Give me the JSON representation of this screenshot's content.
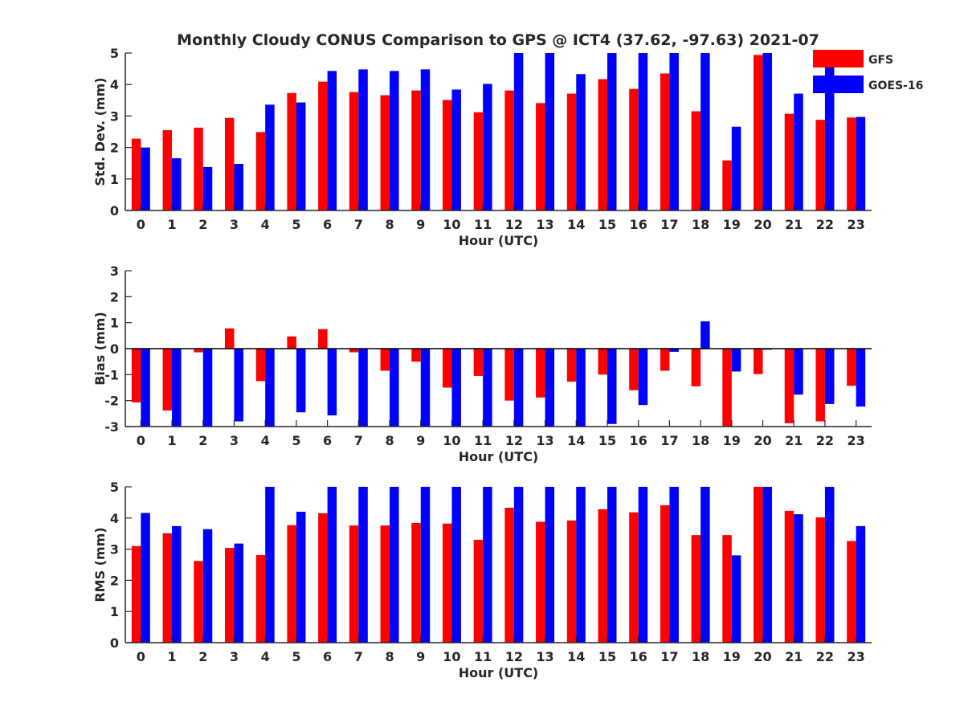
{
  "title": "Monthly Cloudy CONUS Comparison to GPS @ ICT4 (37.62, -97.63) 2021-07",
  "legend": {
    "placement": "top-right",
    "items": [
      {
        "label": "GFS",
        "color": "#ff0000"
      },
      {
        "label": "GOES-16",
        "color": "#0000ff"
      }
    ]
  },
  "chart_data": [
    {
      "type": "bar",
      "ylabel": "Std. Dev. (mm)",
      "xlabel": "Hour (UTC)",
      "ylim": [
        0,
        5
      ],
      "yticks": [
        0,
        1,
        2,
        3,
        4,
        5
      ],
      "categories": [
        "0",
        "1",
        "2",
        "3",
        "4",
        "5",
        "6",
        "7",
        "8",
        "9",
        "10",
        "11",
        "12",
        "13",
        "14",
        "15",
        "16",
        "17",
        "18",
        "19",
        "20",
        "21",
        "22",
        "23"
      ],
      "series": [
        {
          "name": "GFS",
          "color": "#ff0000",
          "values": [
            2.28,
            2.55,
            2.63,
            2.94,
            2.49,
            3.73,
            4.09,
            3.76,
            3.66,
            3.81,
            3.51,
            3.12,
            3.81,
            3.41,
            3.71,
            4.17,
            3.86,
            4.35,
            3.15,
            1.59,
            4.94,
            3.07,
            2.88,
            2.95
          ]
        },
        {
          "name": "GOES-16",
          "color": "#0000ff",
          "values": [
            2.0,
            1.66,
            1.38,
            1.48,
            3.36,
            3.43,
            4.43,
            4.48,
            4.43,
            4.48,
            3.84,
            4.02,
            5.0,
            5.0,
            4.33,
            5.0,
            5.0,
            5.0,
            5.0,
            2.66,
            5.0,
            3.71,
            4.66,
            2.97
          ]
        }
      ]
    },
    {
      "type": "bar",
      "ylabel": "Bias (mm)",
      "xlabel": "Hour (UTC)",
      "ylim": [
        -3,
        3
      ],
      "yticks": [
        -3,
        -2,
        -1,
        0,
        1,
        2,
        3
      ],
      "categories": [
        "0",
        "1",
        "2",
        "3",
        "4",
        "5",
        "6",
        "7",
        "8",
        "9",
        "10",
        "11",
        "12",
        "13",
        "14",
        "15",
        "16",
        "17",
        "18",
        "19",
        "20",
        "21",
        "22",
        "23"
      ],
      "series": [
        {
          "name": "GFS",
          "color": "#ff0000",
          "values": [
            -2.07,
            -2.38,
            -0.14,
            0.78,
            -1.25,
            0.47,
            0.75,
            -0.14,
            -0.85,
            -0.5,
            -1.5,
            -1.05,
            -2.0,
            -1.88,
            -1.27,
            -1.0,
            -1.6,
            -0.85,
            -1.45,
            -3.0,
            -0.98,
            -2.87,
            -2.8,
            -1.43
          ]
        },
        {
          "name": "GOES-16",
          "color": "#0000ff",
          "values": [
            -3.0,
            -3.0,
            -3.0,
            -2.8,
            -3.0,
            -2.45,
            -2.57,
            -3.0,
            -3.0,
            -3.0,
            -3.0,
            -3.0,
            -3.0,
            -3.0,
            -3.0,
            -2.9,
            -2.17,
            -0.12,
            1.05,
            -0.88,
            -0.04,
            -1.77,
            -2.13,
            -2.23
          ]
        }
      ]
    },
    {
      "type": "bar",
      "ylabel": "RMS (mm)",
      "xlabel": "Hour (UTC)",
      "ylim": [
        0,
        5
      ],
      "yticks": [
        0,
        1,
        2,
        3,
        4,
        5
      ],
      "categories": [
        "0",
        "1",
        "2",
        "3",
        "4",
        "5",
        "6",
        "7",
        "8",
        "9",
        "10",
        "11",
        "12",
        "13",
        "14",
        "15",
        "16",
        "17",
        "18",
        "19",
        "20",
        "21",
        "22",
        "23"
      ],
      "series": [
        {
          "name": "GFS",
          "color": "#ff0000",
          "values": [
            3.1,
            3.51,
            2.62,
            3.04,
            2.81,
            3.77,
            4.15,
            3.76,
            3.76,
            3.84,
            3.82,
            3.3,
            4.33,
            3.88,
            3.92,
            4.28,
            4.18,
            4.41,
            3.45,
            3.45,
            5.0,
            4.23,
            4.02,
            3.26
          ]
        },
        {
          "name": "GOES-16",
          "color": "#0000ff",
          "values": [
            4.16,
            3.74,
            3.64,
            3.18,
            5.0,
            4.2,
            5.0,
            5.0,
            5.0,
            5.0,
            5.0,
            5.0,
            5.0,
            5.0,
            5.0,
            5.0,
            5.0,
            5.0,
            5.0,
            2.8,
            5.0,
            4.12,
            5.0,
            3.74
          ]
        }
      ]
    }
  ]
}
